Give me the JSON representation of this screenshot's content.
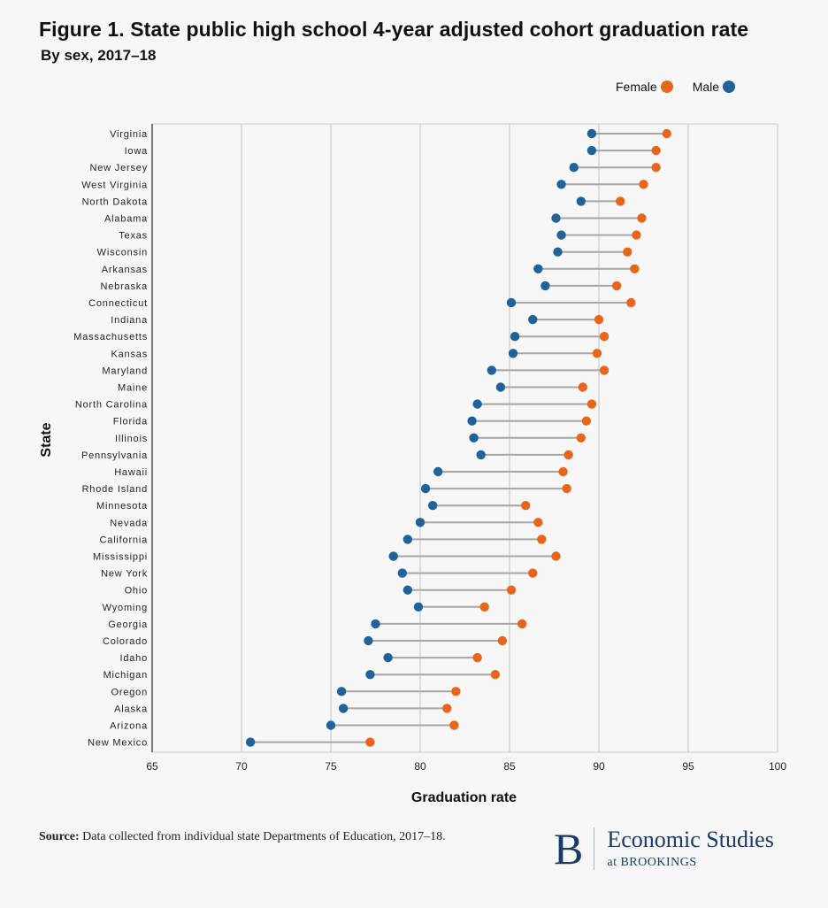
{
  "header": {
    "title": "Figure 1. State public high school 4-year adjusted cohort graduation rate",
    "subtitle": "By sex, 2017–18"
  },
  "legend": {
    "female_label": "Female",
    "male_label": "Male"
  },
  "colors": {
    "female": "#e8651c",
    "male": "#1f6399",
    "connector": "#a6a6a6",
    "grid": "#d4d4d4",
    "plot_bg": "#f7f7f7"
  },
  "footer": {
    "source_label": "Source:",
    "source_text": "Data collected from individual state Departments of Education, 2017–18.",
    "brand_letter": "B",
    "brand_name": "Economic Studies",
    "brand_sub": "at BROOKINGS"
  },
  "chart_data": {
    "type": "dumbbell",
    "title": "Figure 1. State public high school 4-year adjusted cohort graduation rate",
    "subtitle": "By sex, 2017–18",
    "xlabel": "Graduation rate",
    "ylabel": "State",
    "xlim": [
      65,
      100
    ],
    "xticks": [
      65,
      70,
      75,
      80,
      85,
      90,
      95,
      100
    ],
    "grid": "vertical",
    "legend_position": "top-right",
    "categories": [
      "Virginia",
      "Iowa",
      "New Jersey",
      "West Virginia",
      "North Dakota",
      "Alabama",
      "Texas",
      "Wisconsin",
      "Arkansas",
      "Nebraska",
      "Connecticut",
      "Indiana",
      "Massachusetts",
      "Kansas",
      "Maryland",
      "Maine",
      "North Carolina",
      "Florida",
      "Illinois",
      "Pennsylvania",
      "Hawaii",
      "Rhode Island",
      "Minnesota",
      "Nevada",
      "California",
      "Mississippi",
      "New York",
      "Ohio",
      "Wyoming",
      "Georgia",
      "Colorado",
      "Idaho",
      "Michigan",
      "Oregon",
      "Alaska",
      "Arizona",
      "New Mexico"
    ],
    "series": [
      {
        "name": "Female",
        "values": [
          93.8,
          93.2,
          93.2,
          92.5,
          91.2,
          92.4,
          92.1,
          91.6,
          92.0,
          91.0,
          91.8,
          90.0,
          90.3,
          89.9,
          90.3,
          89.1,
          89.6,
          89.3,
          89.0,
          88.3,
          88.0,
          88.2,
          85.9,
          86.6,
          86.8,
          87.6,
          86.3,
          85.1,
          83.6,
          85.7,
          84.6,
          83.2,
          84.2,
          82.0,
          81.5,
          81.9,
          77.2
        ]
      },
      {
        "name": "Male",
        "values": [
          89.6,
          89.6,
          88.6,
          87.9,
          89.0,
          87.6,
          87.9,
          87.7,
          86.6,
          87.0,
          85.1,
          86.3,
          85.3,
          85.2,
          84.0,
          84.5,
          83.2,
          82.9,
          83.0,
          83.4,
          81.0,
          80.3,
          80.7,
          80.0,
          79.3,
          78.5,
          79.0,
          79.3,
          79.9,
          77.5,
          77.1,
          78.2,
          77.2,
          75.6,
          75.7,
          75.0,
          70.5
        ]
      }
    ]
  }
}
